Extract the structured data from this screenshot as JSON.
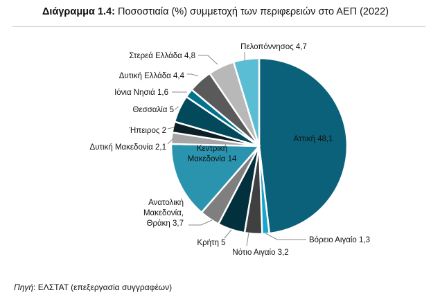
{
  "title": {
    "prefix": "Διάγραμμα 1.4:",
    "text": " Ποσοστιαία (%) συμμετοχή των περιφερειών στο ΑΕΠ (2022)"
  },
  "source": {
    "label": "Πηγή",
    "text": ": ΕΛΣΤΑΤ (επεξεργασία συγγραφέων)"
  },
  "chart_data": {
    "type": "pie",
    "title": "Ποσοστιαία (%) συμμετοχή των περιφερειών στο ΑΕΠ (2022)",
    "start": "top",
    "direction": "clockwise",
    "slices": [
      {
        "name": "Αττική",
        "value": 48.1,
        "label": [
          "Αττική 48,1"
        ],
        "color": "#0b6179"
      },
      {
        "name": "Βόρειο Αιγαίο",
        "value": 1.3,
        "label": [
          "Βόρειο Αιγαίο 1,3"
        ],
        "color": "#1aa6cc"
      },
      {
        "name": "Νότιο Αιγαίο",
        "value": 3.2,
        "label": [
          "Νότιο Αιγαίο 3,2"
        ],
        "color": "#404040"
      },
      {
        "name": "Κρήτη",
        "value": 5,
        "label": [
          "Κρήτη 5"
        ],
        "color": "#03303d"
      },
      {
        "name": "Ανατολική Μακεδονία, Θράκη",
        "value": 3.7,
        "label": [
          "Ανατολική",
          "Μακεδονία,",
          "Θράκη 3,7"
        ],
        "color": "#7f7f7f"
      },
      {
        "name": "Κεντρική Μακεδονία",
        "value": 14,
        "label": [
          "Κεντρική",
          "Μακεδονία 14"
        ],
        "color": "#2a93ae"
      },
      {
        "name": "Δυτική Μακεδονία",
        "value": 2.1,
        "label": [
          "Δυτική Μακεδονία 2,1"
        ],
        "color": "#a6a6a6"
      },
      {
        "name": "Ήπειρος",
        "value": 2,
        "label": [
          "Ήπειρος 2"
        ],
        "color": "#0b1f27"
      },
      {
        "name": "Θεσσαλία",
        "value": 5,
        "label": [
          "Θεσσαλία 5"
        ],
        "color": "#02495b"
      },
      {
        "name": "Ιόνια Νησιά",
        "value": 1.6,
        "label": [
          "Ιόνια Νησιά 1,6"
        ],
        "color": "#03728c"
      },
      {
        "name": "Δυτική Ελλάδα",
        "value": 4.4,
        "label": [
          "Δυτική Ελλάδα 4,4"
        ],
        "color": "#5a5a5a"
      },
      {
        "name": "Στερεά Ελλάδα",
        "value": 4.8,
        "label": [
          "Στερεά Ελλάδα 4,8"
        ],
        "color": "#b8b8b8"
      },
      {
        "name": "Πελοπόννησος",
        "value": 4.7,
        "label": [
          "Πελοπόννησος 4,7"
        ],
        "color": "#5bbdd3"
      }
    ]
  }
}
